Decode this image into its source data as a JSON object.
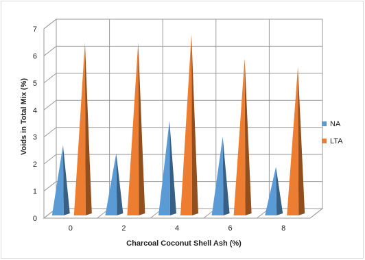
{
  "chart_data": {
    "type": "bar",
    "style": "3d-cone",
    "categories": [
      "0",
      "2",
      "4",
      "6",
      "8"
    ],
    "series": [
      {
        "name": "NA",
        "values": [
          2.6,
          2.3,
          3.5,
          2.9,
          1.8
        ],
        "color": "#5b9bd5"
      },
      {
        "name": "LTA",
        "values": [
          6.4,
          6.4,
          6.7,
          5.8,
          5.5
        ],
        "color": "#ed7d31"
      }
    ],
    "xlabel": "Charcoal Coconut Shell Ash (%)",
    "ylabel": "Voids in Total Mix (%)",
    "ylim": [
      0,
      7
    ],
    "yticks": [
      "0",
      "1",
      "2",
      "3",
      "4",
      "5",
      "6",
      "7"
    ],
    "grid": true,
    "legend_position": "right"
  }
}
